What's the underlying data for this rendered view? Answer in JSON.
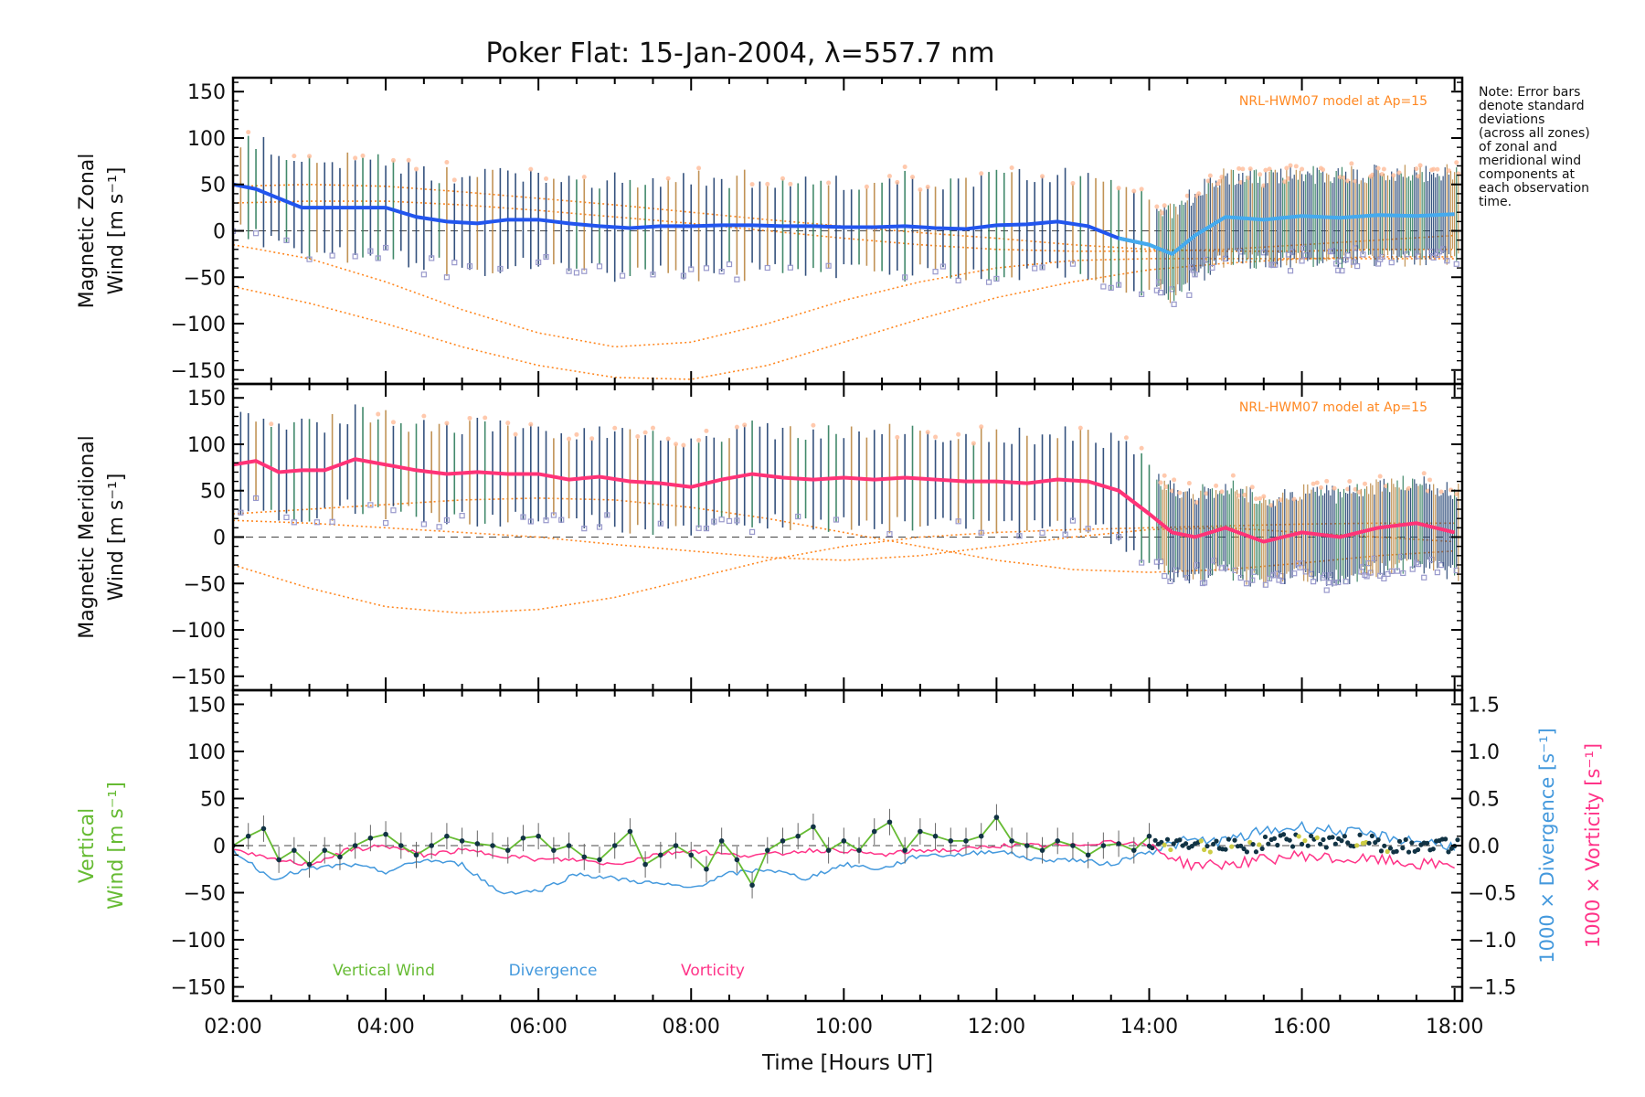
{
  "title": "Poker Flat: 15-Jan-2004, λ=557.7 nm",
  "note_lines": [
    "Note: Error bars",
    "denote standard",
    "deviations",
    "(across all zones)",
    "of zonal and",
    "meridional wind",
    "components at",
    "each observation",
    "time."
  ],
  "colors": {
    "zonal": "#2255ee",
    "zonal_light": "#44aaee",
    "meridional": "#ff3377",
    "vertical": "#66bb33",
    "divergence": "#4499dd",
    "vorticity": "#ff3388",
    "model": "#ff8822",
    "scatter": "#9999cc",
    "errbar": "#1f3f6f"
  },
  "chart_data": [
    {
      "id": "zonal",
      "type": "line",
      "ylabel_lines": [
        "Magnetic Zonal",
        "Wind [m s⁻¹]"
      ],
      "annotation": "NRL-HWM07 model at Ap=15",
      "ylim": [
        -165,
        165
      ],
      "yticks": [
        150,
        100,
        50,
        0,
        -50,
        -100,
        -150
      ],
      "xlim": [
        2,
        18.1
      ],
      "series": [
        {
          "name": "Zonal wind",
          "x": [
            2.0,
            2.3,
            2.6,
            2.9,
            3.2,
            3.6,
            4.0,
            4.4,
            4.8,
            5.2,
            5.6,
            6.0,
            6.4,
            6.8,
            7.2,
            7.6,
            8.0,
            8.4,
            8.8,
            9.2,
            9.6,
            10.0,
            10.4,
            10.8,
            11.2,
            11.6,
            12.0,
            12.4,
            12.8,
            13.2,
            13.6,
            14.0,
            14.3,
            14.6,
            15.0,
            15.5,
            16.0,
            16.5,
            17.0,
            17.5,
            18.0
          ],
          "y": [
            50,
            45,
            35,
            25,
            25,
            25,
            25,
            15,
            10,
            8,
            12,
            12,
            8,
            5,
            3,
            5,
            5,
            6,
            6,
            5,
            5,
            4,
            4,
            5,
            3,
            2,
            6,
            7,
            10,
            5,
            -8,
            -15,
            -25,
            -5,
            15,
            12,
            16,
            14,
            17,
            16,
            18
          ]
        }
      ],
      "model_curves": [
        {
          "x": [
            2.0,
            3.0,
            4.0,
            5.0,
            6.0,
            7.0,
            8.0,
            9.0,
            10.0,
            11.0,
            12.0,
            13.0,
            14.0,
            15.0,
            16.0,
            17.0,
            18.0
          ],
          "y": [
            -60,
            -78,
            -100,
            -125,
            -145,
            -158,
            -160,
            -145,
            -120,
            -95,
            -72,
            -55,
            -42,
            -35,
            -30,
            -28,
            -28
          ]
        },
        {
          "x": [
            2.0,
            3.0,
            4.0,
            5.0,
            6.0,
            7.0,
            8.0,
            9.0,
            10.0,
            11.0,
            12.0,
            13.0,
            14.0,
            15.0,
            16.0,
            17.0,
            18.0
          ],
          "y": [
            -15,
            -30,
            -55,
            -85,
            -110,
            -125,
            -120,
            -100,
            -75,
            -55,
            -40,
            -32,
            -30,
            -30,
            -30,
            -30,
            -30
          ]
        },
        {
          "x": [
            2.0,
            3.0,
            4.0,
            5.0,
            6.0,
            7.0,
            8.0,
            9.0,
            10.0,
            11.0,
            12.0,
            13.0,
            14.0,
            15.0,
            16.0,
            17.0,
            18.0
          ],
          "y": [
            48,
            50,
            48,
            42,
            35,
            28,
            20,
            12,
            5,
            -2,
            -8,
            -15,
            -20,
            -22,
            -22,
            -20,
            -20
          ]
        },
        {
          "x": [
            2.0,
            3.0,
            4.0,
            5.0,
            6.0,
            7.0,
            8.0,
            9.0,
            10.0,
            11.0,
            12.0,
            13.0,
            14.0,
            15.0,
            16.0,
            17.0,
            18.0
          ],
          "y": [
            30,
            32,
            32,
            28,
            22,
            15,
            8,
            0,
            -8,
            -15,
            -20,
            -22,
            -22,
            -20,
            -15,
            -10,
            -5
          ]
        }
      ]
    },
    {
      "id": "meridional",
      "type": "line",
      "ylabel_lines": [
        "Magnetic Meridional",
        "Wind [m s⁻¹]"
      ],
      "annotation": "NRL-HWM07 model at Ap=15",
      "ylim": [
        -165,
        165
      ],
      "yticks": [
        150,
        100,
        50,
        0,
        -50,
        -100,
        -150
      ],
      "xlim": [
        2,
        18.1
      ],
      "series": [
        {
          "name": "Meridional wind",
          "x": [
            2.0,
            2.3,
            2.6,
            2.9,
            3.2,
            3.6,
            4.0,
            4.4,
            4.8,
            5.2,
            5.6,
            6.0,
            6.4,
            6.8,
            7.2,
            7.6,
            8.0,
            8.4,
            8.8,
            9.2,
            9.6,
            10.0,
            10.4,
            10.8,
            11.2,
            11.6,
            12.0,
            12.4,
            12.8,
            13.2,
            13.6,
            14.0,
            14.3,
            14.6,
            15.0,
            15.5,
            16.0,
            16.5,
            17.0,
            17.5,
            18.0
          ],
          "y": [
            78,
            82,
            70,
            72,
            72,
            84,
            78,
            72,
            68,
            70,
            68,
            68,
            62,
            65,
            60,
            58,
            54,
            62,
            68,
            64,
            62,
            64,
            62,
            64,
            62,
            60,
            60,
            58,
            62,
            60,
            50,
            25,
            5,
            0,
            10,
            -5,
            5,
            0,
            10,
            15,
            5
          ]
        }
      ],
      "model_curves": [
        {
          "x": [
            2.0,
            3.0,
            4.0,
            5.0,
            6.0,
            7.0,
            8.0,
            9.0,
            10.0,
            11.0,
            12.0,
            13.0,
            14.0,
            15.0,
            16.0,
            17.0,
            18.0
          ],
          "y": [
            -30,
            -55,
            -75,
            -82,
            -78,
            -65,
            -45,
            -25,
            -10,
            0,
            5,
            8,
            10,
            12,
            14,
            15,
            15
          ]
        },
        {
          "x": [
            2.0,
            3.0,
            4.0,
            5.0,
            6.0,
            7.0,
            8.0,
            9.0,
            10.0,
            11.0,
            12.0,
            13.0,
            14.0,
            15.0,
            16.0,
            17.0,
            18.0
          ],
          "y": [
            25,
            30,
            35,
            40,
            42,
            40,
            32,
            20,
            5,
            -10,
            -25,
            -35,
            -38,
            -35,
            -28,
            -20,
            -15
          ]
        },
        {
          "x": [
            2.0,
            3.0,
            4.0,
            5.0,
            6.0,
            7.0,
            8.0,
            9.0,
            10.0,
            11.0,
            12.0,
            13.0,
            14.0,
            15.0,
            16.0,
            17.0,
            18.0
          ],
          "y": [
            18,
            15,
            10,
            5,
            0,
            -8,
            -15,
            -22,
            -25,
            -20,
            -10,
            0,
            8,
            10,
            5,
            0,
            -5
          ]
        }
      ]
    },
    {
      "id": "vertical",
      "type": "line",
      "ylabel_lines": [
        "Vertical",
        "Wind [m s⁻¹]"
      ],
      "ylim": [
        -165,
        165
      ],
      "yticks": [
        150,
        100,
        50,
        0,
        -50,
        -100,
        -150
      ],
      "xlim": [
        2,
        18.1
      ],
      "xticks": [
        "02:00",
        "04:00",
        "06:00",
        "08:00",
        "10:00",
        "12:00",
        "14:00",
        "16:00",
        "18:00"
      ],
      "xtick_values": [
        2,
        4,
        6,
        8,
        10,
        12,
        14,
        16,
        18
      ],
      "xlabel": "Time [Hours UT]",
      "right_axis_ylim": [
        -1.65,
        1.65
      ],
      "right_axis_ticks": [
        "1.5",
        "1.0",
        "0.5",
        "0.0",
        "−0.5",
        "−1.0",
        "−1.5"
      ],
      "right_axis_tick_values": [
        1.5,
        1.0,
        0.5,
        0.0,
        -0.5,
        -1.0,
        -1.5
      ],
      "right_label_1": "1000 × Divergence [s⁻¹]",
      "right_label_2": "1000 × Vorticity [s⁻¹]",
      "legend": [
        "Vertical Wind",
        "Divergence",
        "Vorticity"
      ],
      "series": [
        {
          "name": "Vertical Wind",
          "x": [
            2.0,
            2.2,
            2.4,
            2.6,
            2.8,
            3.0,
            3.2,
            3.4,
            3.6,
            3.8,
            4.0,
            4.2,
            4.4,
            4.6,
            4.8,
            5.0,
            5.2,
            5.4,
            5.6,
            5.8,
            6.0,
            6.2,
            6.4,
            6.6,
            6.8,
            7.0,
            7.2,
            7.4,
            7.6,
            7.8,
            8.0,
            8.2,
            8.4,
            8.6,
            8.8,
            9.0,
            9.2,
            9.4,
            9.6,
            9.8,
            10.0,
            10.2,
            10.4,
            10.6,
            10.8,
            11.0,
            11.2,
            11.4,
            11.6,
            11.8,
            12.0,
            12.2,
            12.4,
            12.6,
            12.8,
            13.0,
            13.2,
            13.4,
            13.6,
            13.8,
            14.0
          ],
          "y": [
            0,
            10,
            18,
            -15,
            -5,
            -20,
            -5,
            -12,
            0,
            8,
            12,
            0,
            -10,
            0,
            10,
            5,
            2,
            0,
            -5,
            8,
            10,
            -5,
            0,
            -12,
            -15,
            0,
            15,
            -20,
            -10,
            0,
            -10,
            -25,
            5,
            -15,
            -42,
            -5,
            5,
            10,
            20,
            -5,
            5,
            -5,
            15,
            25,
            -5,
            15,
            10,
            5,
            5,
            10,
            30,
            5,
            0,
            -5,
            5,
            0,
            -10,
            0,
            2,
            -5,
            10
          ]
        },
        {
          "name": "Divergence",
          "x": [
            2.0,
            2.5,
            3.0,
            3.5,
            4.0,
            4.5,
            5.0,
            5.5,
            6.0,
            6.5,
            7.0,
            7.5,
            8.0,
            8.5,
            9.0,
            9.5,
            10.0,
            10.5,
            11.0,
            11.5,
            12.0,
            12.5,
            13.0,
            13.5,
            14.0,
            14.5,
            15.0,
            15.5,
            16.0,
            16.5,
            17.0,
            17.5,
            18.0
          ],
          "y": [
            -0.05,
            -0.35,
            -0.25,
            -0.2,
            -0.28,
            -0.15,
            -0.2,
            -0.5,
            -0.48,
            -0.3,
            -0.35,
            -0.4,
            -0.45,
            -0.3,
            -0.25,
            -0.35,
            -0.2,
            -0.25,
            -0.1,
            -0.1,
            -0.05,
            -0.15,
            -0.15,
            -0.2,
            -0.05,
            0.05,
            0.05,
            0.15,
            0.2,
            0.15,
            0.1,
            0.05,
            0.0
          ]
        },
        {
          "name": "Vorticity",
          "x": [
            2.0,
            2.5,
            3.0,
            3.5,
            4.0,
            4.5,
            5.0,
            5.5,
            6.0,
            6.5,
            7.0,
            7.5,
            8.0,
            8.5,
            9.0,
            9.5,
            10.0,
            10.5,
            11.0,
            11.5,
            12.0,
            12.5,
            13.0,
            13.5,
            14.0,
            14.5,
            15.0,
            15.5,
            16.0,
            16.5,
            17.0,
            17.5,
            18.0
          ],
          "y": [
            -0.05,
            -0.15,
            -0.2,
            -0.05,
            0.0,
            -0.1,
            -0.05,
            -0.1,
            -0.15,
            -0.15,
            -0.2,
            -0.1,
            -0.05,
            -0.1,
            -0.1,
            -0.05,
            -0.05,
            -0.1,
            -0.05,
            -0.05,
            0.0,
            0.0,
            0.0,
            0.05,
            0.0,
            -0.2,
            -0.2,
            -0.15,
            -0.1,
            -0.15,
            -0.15,
            -0.2,
            -0.2
          ]
        }
      ]
    }
  ]
}
